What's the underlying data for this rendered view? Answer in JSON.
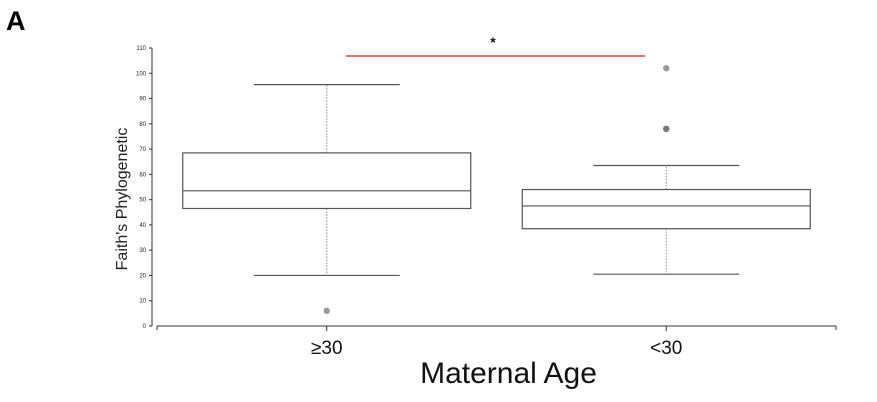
{
  "panel_label": "A",
  "chart_data": {
    "type": "box",
    "title": "",
    "xlabel": "Maternal Age",
    "ylabel": "Faith's Phylogenetic",
    "ylim": [
      0,
      110
    ],
    "yticks": [
      0,
      10,
      20,
      30,
      40,
      50,
      60,
      70,
      80,
      90,
      100,
      110
    ],
    "grid": false,
    "categories": [
      "≥30",
      "<30"
    ],
    "boxes": [
      {
        "name": "≥30",
        "whisker_low": 20,
        "q1": 46.5,
        "median": 53.5,
        "q3": 68.5,
        "whisker_high": 95.5,
        "outliers": [
          6
        ]
      },
      {
        "name": "<30",
        "whisker_low": 20.5,
        "q1": 38.5,
        "median": 47.5,
        "q3": 54,
        "whisker_high": 63.5,
        "outliers": [
          78,
          102
        ]
      }
    ],
    "annotations": [
      {
        "type": "significance_bracket",
        "from": "≥30",
        "to": "<30",
        "y": 107,
        "text": "*",
        "color": "#e8413c"
      }
    ],
    "colors": {
      "box_stroke": "#555555",
      "whisker": "#888888",
      "outlier": "#9a9a9a",
      "significance": "#e8413c",
      "axis": "#333333"
    }
  }
}
